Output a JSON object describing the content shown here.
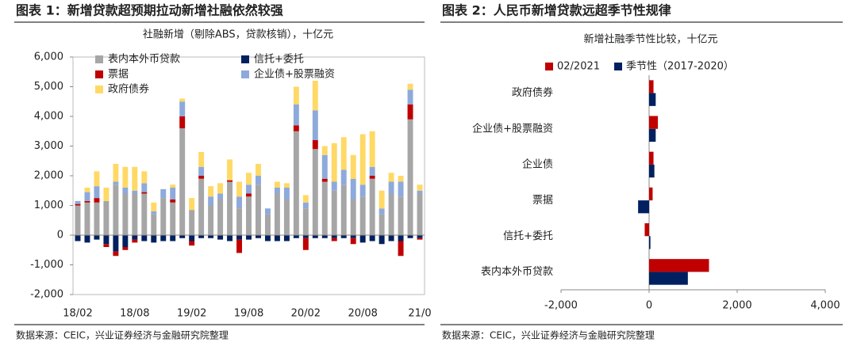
{
  "chart_data": [
    {
      "type": "bar",
      "stacked": true,
      "title": "图表 1：新增贷款超预期拉动新增社融依然较强",
      "subtitle": "社融新增（剔除ABS，贷款核销），十亿元",
      "source": "数据来源：CEIC，兴业证券经济与金融研究院整理",
      "categories": [
        "18/02",
        null,
        null,
        null,
        null,
        null,
        "18/08",
        null,
        null,
        null,
        null,
        null,
        "19/02",
        null,
        null,
        null,
        null,
        null,
        "19/08",
        null,
        null,
        null,
        null,
        null,
        "20/02",
        null,
        null,
        null,
        null,
        null,
        "20/08",
        null,
        null,
        null,
        null,
        null,
        "21/0"
      ],
      "series": [
        {
          "name": "表内本外币贷款",
          "color": "#a6a6a6",
          "values": [
            1000,
            1100,
            1100,
            1150,
            1700,
            1400,
            1400,
            1400,
            700,
            1250,
            1100,
            3600,
            850,
            1900,
            1000,
            1200,
            1800,
            900,
            1300,
            1700,
            700,
            1400,
            1200,
            3500,
            900,
            2900,
            1800,
            1500,
            1700,
            1200,
            1300,
            1900,
            700,
            1400,
            1300,
            3900,
            1400
          ]
        },
        {
          "name": "信托+委托",
          "color": "#002060",
          "values": [
            -200,
            -250,
            -150,
            -300,
            -550,
            -400,
            -150,
            -200,
            -250,
            -200,
            -200,
            -100,
            -200,
            -100,
            -100,
            -150,
            -200,
            -150,
            -150,
            -100,
            -200,
            -200,
            -200,
            -100,
            -100,
            -100,
            -100,
            -100,
            -100,
            -100,
            -250,
            -200,
            -300,
            -200,
            -200,
            -100,
            -100
          ]
        },
        {
          "name": "票据",
          "color": "#c00000",
          "values": [
            50,
            50,
            150,
            -100,
            -150,
            -100,
            -100,
            50,
            0,
            0,
            100,
            400,
            -150,
            100,
            0,
            0,
            50,
            -450,
            100,
            0,
            0,
            0,
            0,
            200,
            -400,
            300,
            100,
            -100,
            0,
            -200,
            0,
            100,
            0,
            0,
            -500,
            500,
            -50
          ]
        },
        {
          "name": "企业债+股票融资",
          "color": "#8eaadb",
          "values": [
            100,
            300,
            400,
            0,
            100,
            200,
            100,
            300,
            100,
            300,
            400,
            500,
            0,
            300,
            300,
            200,
            0,
            400,
            300,
            300,
            200,
            200,
            400,
            700,
            200,
            1000,
            800,
            300,
            500,
            700,
            400,
            300,
            200,
            400,
            500,
            500,
            100
          ]
        },
        {
          "name": "政府债券",
          "color": "#ffd966",
          "values": [
            0,
            150,
            500,
            450,
            600,
            700,
            800,
            400,
            300,
            0,
            100,
            100,
            400,
            500,
            350,
            350,
            700,
            500,
            400,
            400,
            0,
            200,
            150,
            600,
            250,
            1000,
            300,
            1300,
            1100,
            800,
            1700,
            1200,
            600,
            300,
            200,
            200,
            200
          ]
        }
      ],
      "ylim": [
        -2000,
        6000
      ],
      "yticks": [
        {
          "value": -2000,
          "label": "-2,000"
        },
        {
          "value": -1000,
          "label": "-1,000"
        },
        0,
        {
          "value": 1000,
          "label": "1,000"
        },
        {
          "value": 2000,
          "label": "2,000"
        },
        {
          "value": 3000,
          "label": "3,000"
        },
        {
          "value": 4000,
          "label": "4,000"
        },
        {
          "value": 5000,
          "label": "5,000"
        },
        {
          "value": 6000,
          "label": "6,000"
        }
      ],
      "legend": "top-left"
    },
    {
      "type": "bar",
      "orientation": "horizontal",
      "title": "图表 2：人民币新增贷款远超季节性规律",
      "subtitle": "新增社融季节性比较，十亿元",
      "source": "数据来源：CEIC，兴业证券经济与金融研究院整理",
      "categories": [
        "政府债券",
        "企业债+股票融资",
        "企业债",
        "票据",
        "信托+委托",
        "表内本外币贷款"
      ],
      "series": [
        {
          "name": "02/2021",
          "color": "#c00000",
          "values": [
            100,
            200,
            100,
            80,
            -100,
            1360
          ]
        },
        {
          "name": "季节性（2017-2020）",
          "color": "#002060",
          "values": [
            150,
            150,
            120,
            -250,
            30,
            880
          ]
        }
      ],
      "xlim": [
        -2000,
        4000
      ],
      "xticks": [
        {
          "value": -2000,
          "label": "-2,000"
        },
        0,
        {
          "value": 2000,
          "label": "2,000"
        },
        {
          "value": 4000,
          "label": "4,000"
        }
      ],
      "legend": "top"
    }
  ]
}
